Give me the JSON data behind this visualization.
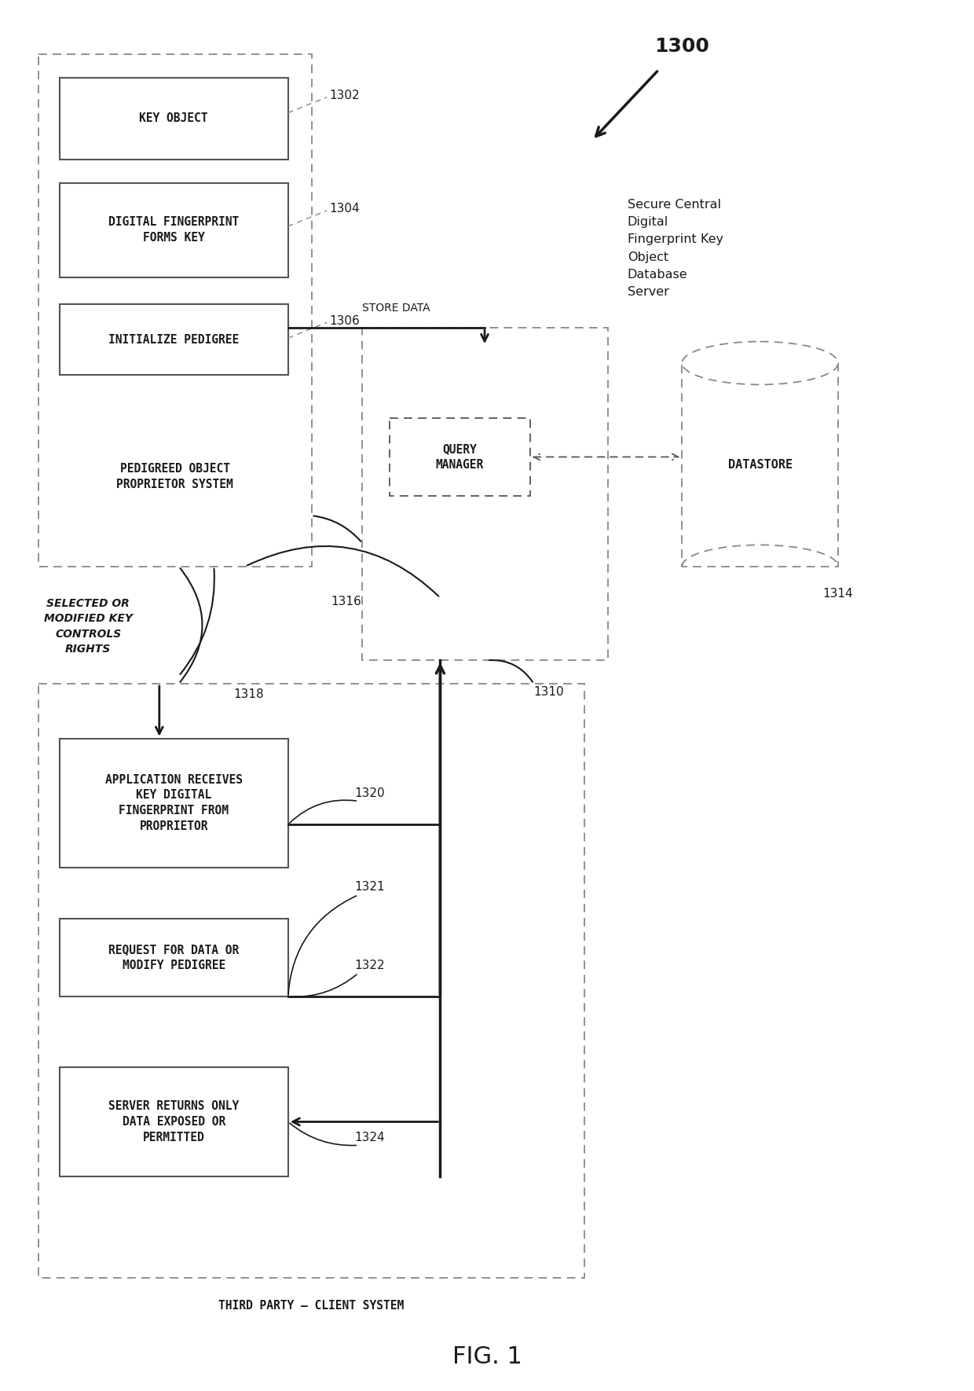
{
  "bg_color": "#ffffff",
  "fig_width": 12.4,
  "fig_height": 17.7,
  "title": "FIG. 1",
  "text_key_object": "KEY OBJECT",
  "text_digital_fp": "DIGITAL FINGERPRINT\nFORMS KEY",
  "text_init_pedigree": "INITIALIZE PEDIGREE",
  "text_proprietor": "PEDIGREED OBJECT\nPROPRIETOR SYSTEM",
  "text_query_manager": "QUERY\nMANAGER",
  "text_datastore": "DATASTORE",
  "text_app_receives": "APPLICATION RECEIVES\nKEY DIGITAL\nFINGERPRINT FROM\nPROPRIETOR",
  "text_request_data": "REQUEST FOR DATA OR\nMODIFY PEDIGREE",
  "text_server_returns": "SERVER RETURNS ONLY\nDATA EXPOSED OR\nPERMITTED",
  "text_third_party": "THIRD PARTY – CLIENT SYSTEM",
  "text_store_data": "STORE DATA",
  "text_secure_server": "Secure Central\nDigital\nFingerprint Key\nObject\nDatabase\nServer",
  "text_selected": "SELECTED OR\nMODIFIED KEY\nCONTROLS\nRIGHTS",
  "ref_1300": "1300",
  "ref_1302": "1302",
  "ref_1304": "1304",
  "ref_1306": "1306",
  "ref_1310": "1310",
  "ref_1314": "1314",
  "ref_1316": "1316",
  "ref_1318": "1318",
  "ref_1320": "1320",
  "ref_1321": "1321",
  "ref_1322": "1322",
  "ref_1324": "1324",
  "gray": "#888888",
  "black": "#1a1a1a",
  "darkgray": "#555555"
}
